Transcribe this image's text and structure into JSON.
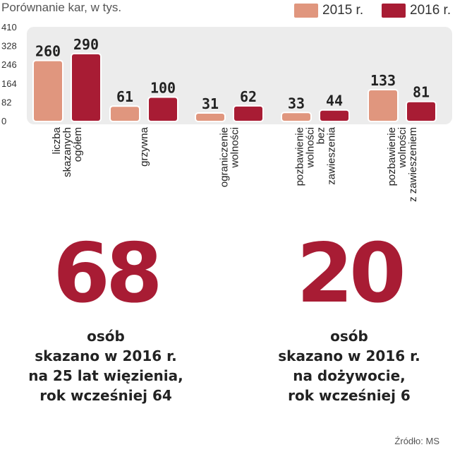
{
  "chart_data": {
    "type": "bar",
    "title": "Porównanie kar, w tys.",
    "categories": [
      [
        "liczba",
        "skazanych",
        "ogółem"
      ],
      [
        "grzywna"
      ],
      [
        "ograniczenie",
        "wolności"
      ],
      [
        "pozbawienie",
        "wolności",
        "bez",
        "zawieszenia"
      ],
      [
        "pozbawienie",
        "wolności",
        "z zawieszeniem"
      ]
    ],
    "series": [
      {
        "name": "2015 r.",
        "color": "#e0967e",
        "values": [
          260,
          61,
          31,
          33,
          133
        ]
      },
      {
        "name": "2016 r.",
        "color": "#a81c34",
        "values": [
          290,
          100,
          62,
          44,
          81
        ]
      }
    ],
    "yticks": [
      0,
      82,
      164,
      246,
      328,
      410
    ],
    "ylim": [
      0,
      410
    ],
    "legend": "top-right",
    "xlabel": "",
    "ylabel": ""
  },
  "stats": [
    {
      "number": "68",
      "lines": [
        "osób",
        "skazano w 2016 r.",
        "na 25 lat więzienia,",
        "rok wcześniej 64"
      ]
    },
    {
      "number": "20",
      "lines": [
        "osób",
        "skazano w 2016 r.",
        "na dożywocie,",
        "rok wcześniej 6"
      ]
    }
  ],
  "source": "Źródło: MS"
}
